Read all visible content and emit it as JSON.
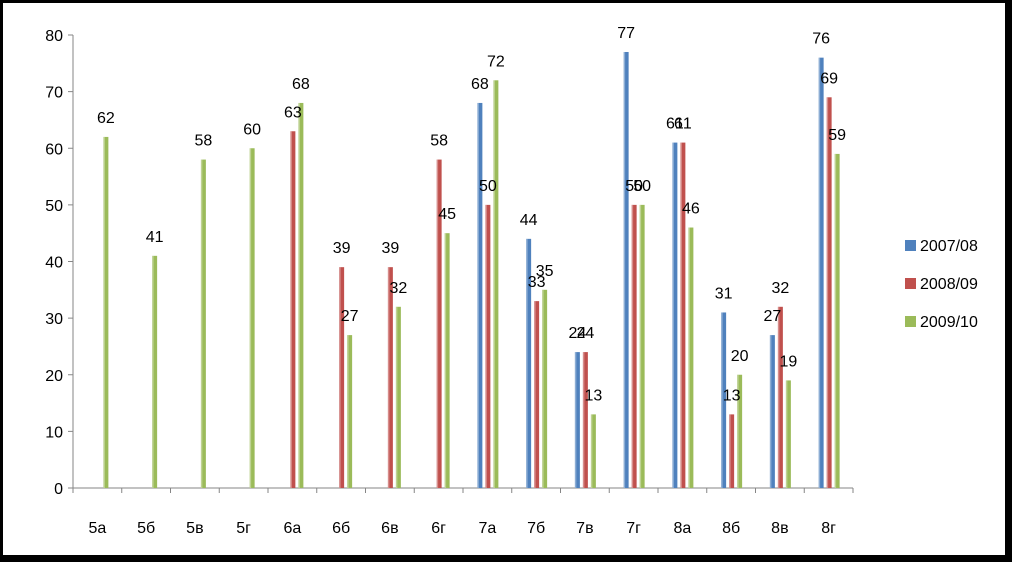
{
  "chart_data": {
    "type": "bar",
    "categories": [
      "5а",
      "5б",
      "5в",
      "5г",
      "6а",
      "6б",
      "6в",
      "6г",
      "7а",
      "7б",
      "7в",
      "7г",
      "8а",
      "8б",
      "8в",
      "8г"
    ],
    "series": [
      {
        "name": "2007/08",
        "color": "#4F81BD",
        "values": [
          null,
          null,
          null,
          null,
          null,
          null,
          null,
          null,
          68,
          44,
          24,
          77,
          61,
          31,
          27,
          76
        ]
      },
      {
        "name": "2008/09",
        "color": "#C0504D",
        "values": [
          null,
          null,
          null,
          null,
          63,
          39,
          39,
          58,
          50,
          33,
          24,
          50,
          61,
          13,
          32,
          69
        ]
      },
      {
        "name": "2009/10",
        "color": "#9BBB59",
        "values": [
          62,
          41,
          58,
          60,
          68,
          27,
          32,
          45,
          72,
          35,
          13,
          50,
          46,
          20,
          19,
          59
        ]
      }
    ],
    "yticks": [
      0,
      10,
      20,
      30,
      40,
      50,
      60,
      70,
      80
    ],
    "ylim": [
      0,
      80
    ],
    "grid": false,
    "legend_position": "right"
  }
}
